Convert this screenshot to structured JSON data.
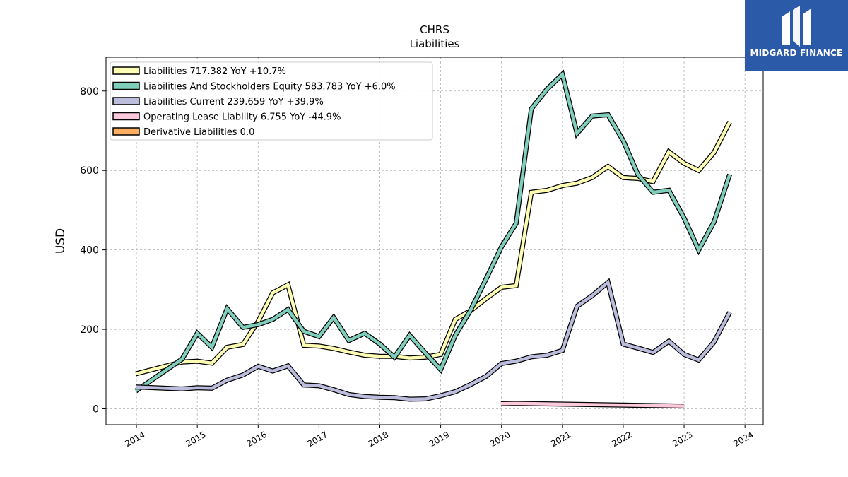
{
  "brand": {
    "name": "MIDGARD FINANCE",
    "color": "#2b5aa8"
  },
  "chart_data": {
    "type": "line",
    "title": "CHRS",
    "subtitle": "Liabilities",
    "ylabel": "USD",
    "xlabel": "",
    "xlim": [
      2013.5,
      2024.3
    ],
    "ylim": [
      -40,
      885
    ],
    "grid": true,
    "legend_position": "top-left",
    "x_ticks": [
      "2014",
      "2015",
      "2016",
      "2017",
      "2018",
      "2019",
      "2020",
      "2021",
      "2022",
      "2023",
      "2024"
    ],
    "y_ticks": [
      0,
      200,
      400,
      600,
      800
    ],
    "series": [
      {
        "name": "Liabilities",
        "legend": "Liabilities  717.382 YoY +10.7%",
        "color": "#fdfdb4",
        "x": [
          2013.99,
          2014.75,
          2015.0,
          2015.24,
          2015.49,
          2015.75,
          2016.0,
          2016.24,
          2016.49,
          2016.75,
          2017.0,
          2017.24,
          2017.49,
          2017.75,
          2018.0,
          2018.24,
          2018.49,
          2018.75,
          2019.0,
          2019.24,
          2019.49,
          2019.75,
          2020.0,
          2020.24,
          2020.49,
          2020.75,
          2021.0,
          2021.24,
          2021.49,
          2021.75,
          2022.0,
          2022.24,
          2022.49,
          2022.75,
          2023.0,
          2023.24,
          2023.49,
          2023.75
        ],
        "values": [
          88,
          118,
          120,
          115,
          155,
          162,
          220,
          292,
          312,
          160,
          158,
          152,
          143,
          135,
          132,
          132,
          128,
          130,
          137,
          225,
          247,
          278,
          306,
          310,
          545,
          550,
          562,
          568,
          582,
          610,
          582,
          580,
          572,
          647,
          618,
          600,
          645,
          722
        ]
      },
      {
        "name": "Liabilities And Stockholders Equity",
        "legend": "Liabilities And Stockholders Equity  583.783 YoY +6.0%",
        "color": "#7fcdbb",
        "x": [
          2013.99,
          2014.75,
          2015.0,
          2015.24,
          2015.49,
          2015.75,
          2016.0,
          2016.24,
          2016.49,
          2016.75,
          2017.0,
          2017.24,
          2017.49,
          2017.75,
          2018.0,
          2018.24,
          2018.49,
          2018.75,
          2019.0,
          2019.24,
          2019.49,
          2019.75,
          2020.0,
          2020.24,
          2020.49,
          2020.75,
          2021.0,
          2021.24,
          2021.49,
          2021.75,
          2022.0,
          2022.24,
          2022.49,
          2022.75,
          2023.0,
          2023.24,
          2023.49,
          2023.75
        ],
        "values": [
          45,
          125,
          190,
          155,
          252,
          205,
          212,
          225,
          250,
          195,
          182,
          230,
          172,
          190,
          163,
          130,
          185,
          140,
          99,
          185,
          248,
          328,
          408,
          467,
          755,
          805,
          842,
          693,
          737,
          740,
          675,
          590,
          545,
          550,
          480,
          400,
          470,
          590
        ]
      },
      {
        "name": "Liabilities Current",
        "legend": "Liabilities Current  239.659 YoY +39.9%",
        "color": "#bcbddc",
        "x": [
          2013.99,
          2014.75,
          2015.0,
          2015.24,
          2015.49,
          2015.75,
          2016.0,
          2016.24,
          2016.49,
          2016.75,
          2017.0,
          2017.24,
          2017.49,
          2017.75,
          2018.0,
          2018.24,
          2018.49,
          2018.75,
          2019.0,
          2019.24,
          2019.49,
          2019.75,
          2020.0,
          2020.24,
          2020.49,
          2020.75,
          2021.0,
          2021.24,
          2021.49,
          2021.75,
          2022.0,
          2022.24,
          2022.49,
          2022.75,
          2023.0,
          2023.24,
          2023.49,
          2023.75
        ],
        "values": [
          55,
          50,
          53,
          52,
          72,
          85,
          107,
          95,
          108,
          60,
          58,
          48,
          36,
          31,
          29,
          28,
          24,
          25,
          33,
          43,
          61,
          82,
          114,
          120,
          131,
          135,
          147,
          258,
          285,
          318,
          163,
          153,
          142,
          170,
          137,
          123,
          168,
          243
        ]
      },
      {
        "name": "Operating Lease Liability",
        "legend": "Operating Lease Liability  6.755 YoY -44.9%",
        "color": "#fbc8dc",
        "x": [
          2019.99,
          2020.24,
          2023.0
        ],
        "values": [
          13,
          13.5,
          7
        ]
      },
      {
        "name": "Derivative Liabilities",
        "legend": "Derivative Liabilities  0.0",
        "color": "#fdae61",
        "x": [],
        "values": []
      }
    ]
  }
}
